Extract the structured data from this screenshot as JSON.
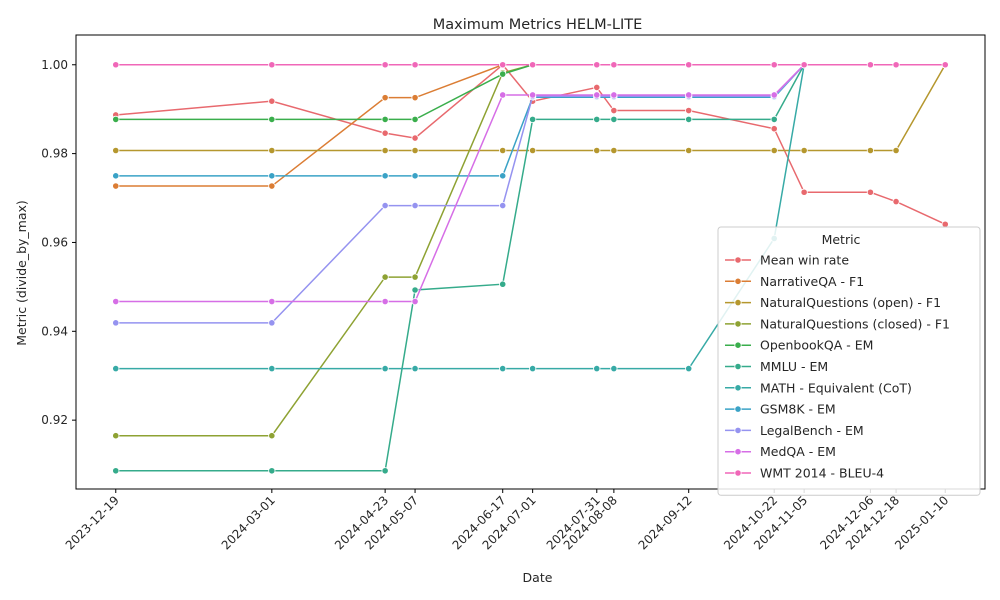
{
  "chart_data": {
    "type": "line",
    "title": "Maximum Metrics HELM-LITE",
    "xlabel": "Date",
    "ylabel": "Metric (divide_by_max)",
    "ylim": [
      0.9045,
      1.0067
    ],
    "yticks": [
      "0.92",
      "0.94",
      "0.96",
      "0.98",
      "1.00"
    ],
    "ytick_values": [
      0.92,
      0.94,
      0.96,
      0.98,
      1.0
    ],
    "x": [
      "2023-12-19",
      "2024-03-01",
      "2024-04-23",
      "2024-05-07",
      "2024-06-17",
      "2024-07-01",
      "2024-07-31",
      "2024-08-08",
      "2024-09-12",
      "2024-10-22",
      "2024-11-05",
      "2024-12-06",
      "2024-12-18",
      "2025-01-10"
    ],
    "legend_title": "Metric",
    "legend_position": "center-right",
    "grid": false,
    "series": [
      {
        "name": "Mean win rate",
        "color": "#e8696e",
        "values": [
          0.9887,
          0.9918,
          0.9846,
          0.9835,
          1.0,
          0.9918,
          0.9949,
          0.9897,
          0.9897,
          0.9856,
          0.9713,
          0.9713,
          0.9692,
          0.9641
        ]
      },
      {
        "name": "NarrativeQA - F1",
        "color": "#db7d34",
        "values": [
          0.9727,
          0.9727,
          0.9926,
          0.9926,
          1.0,
          1.0,
          1.0,
          1.0,
          1.0,
          1.0,
          1.0,
          1.0,
          1.0,
          1.0
        ]
      },
      {
        "name": "NaturalQuestions (open) - F1",
        "color": "#b5972e",
        "values": [
          0.9807,
          0.9807,
          0.9807,
          0.9807,
          0.9807,
          0.9807,
          0.9807,
          0.9807,
          0.9807,
          0.9807,
          0.9807,
          0.9807,
          0.9807,
          1.0
        ]
      },
      {
        "name": "NaturalQuestions (closed) - F1",
        "color": "#8ea233",
        "values": [
          0.9165,
          0.9165,
          0.9522,
          0.9522,
          0.9982,
          1.0,
          1.0,
          1.0,
          1.0,
          1.0,
          1.0,
          1.0,
          1.0,
          1.0
        ]
      },
      {
        "name": "OpenbookQA - EM",
        "color": "#3aae4c",
        "values": [
          0.9877,
          0.9877,
          0.9877,
          0.9877,
          0.9979,
          1.0,
          1.0,
          1.0,
          1.0,
          1.0,
          1.0,
          1.0,
          1.0,
          1.0
        ]
      },
      {
        "name": "MMLU - EM",
        "color": "#35ab8b",
        "values": [
          0.9086,
          0.9086,
          0.9086,
          0.9493,
          0.9506,
          0.9877,
          0.9877,
          0.9877,
          0.9877,
          0.9877,
          1.0,
          1.0,
          1.0,
          1.0
        ]
      },
      {
        "name": "MATH - Equivalent (CoT)",
        "color": "#37aaa6",
        "values": [
          0.9316,
          0.9316,
          0.9316,
          0.9316,
          0.9316,
          0.9316,
          0.9316,
          0.9316,
          0.9316,
          0.9609,
          1.0,
          1.0,
          1.0,
          1.0
        ]
      },
      {
        "name": "GSM8K - EM",
        "color": "#3aa2c6",
        "values": [
          0.975,
          0.975,
          0.975,
          0.975,
          0.975,
          0.9927,
          0.9927,
          0.9927,
          0.9927,
          0.9927,
          1.0,
          1.0,
          1.0,
          1.0
        ]
      },
      {
        "name": "LegalBench - EM",
        "color": "#9593f0",
        "values": [
          0.9419,
          0.9419,
          0.9683,
          0.9683,
          0.9683,
          0.9929,
          0.9929,
          0.9929,
          0.9929,
          0.9929,
          1.0,
          1.0,
          1.0,
          1.0
        ]
      },
      {
        "name": "MedQA - EM",
        "color": "#d66ee6",
        "values": [
          0.9467,
          0.9467,
          0.9467,
          0.9467,
          0.9932,
          0.9932,
          0.9932,
          0.9932,
          0.9932,
          0.9932,
          1.0,
          1.0,
          1.0,
          1.0
        ]
      },
      {
        "name": "WMT 2014 - BLEU-4",
        "color": "#f067b8",
        "values": [
          1.0,
          1.0,
          1.0,
          1.0,
          1.0,
          1.0,
          1.0,
          1.0,
          1.0,
          1.0,
          1.0,
          1.0,
          1.0,
          1.0
        ]
      }
    ]
  }
}
